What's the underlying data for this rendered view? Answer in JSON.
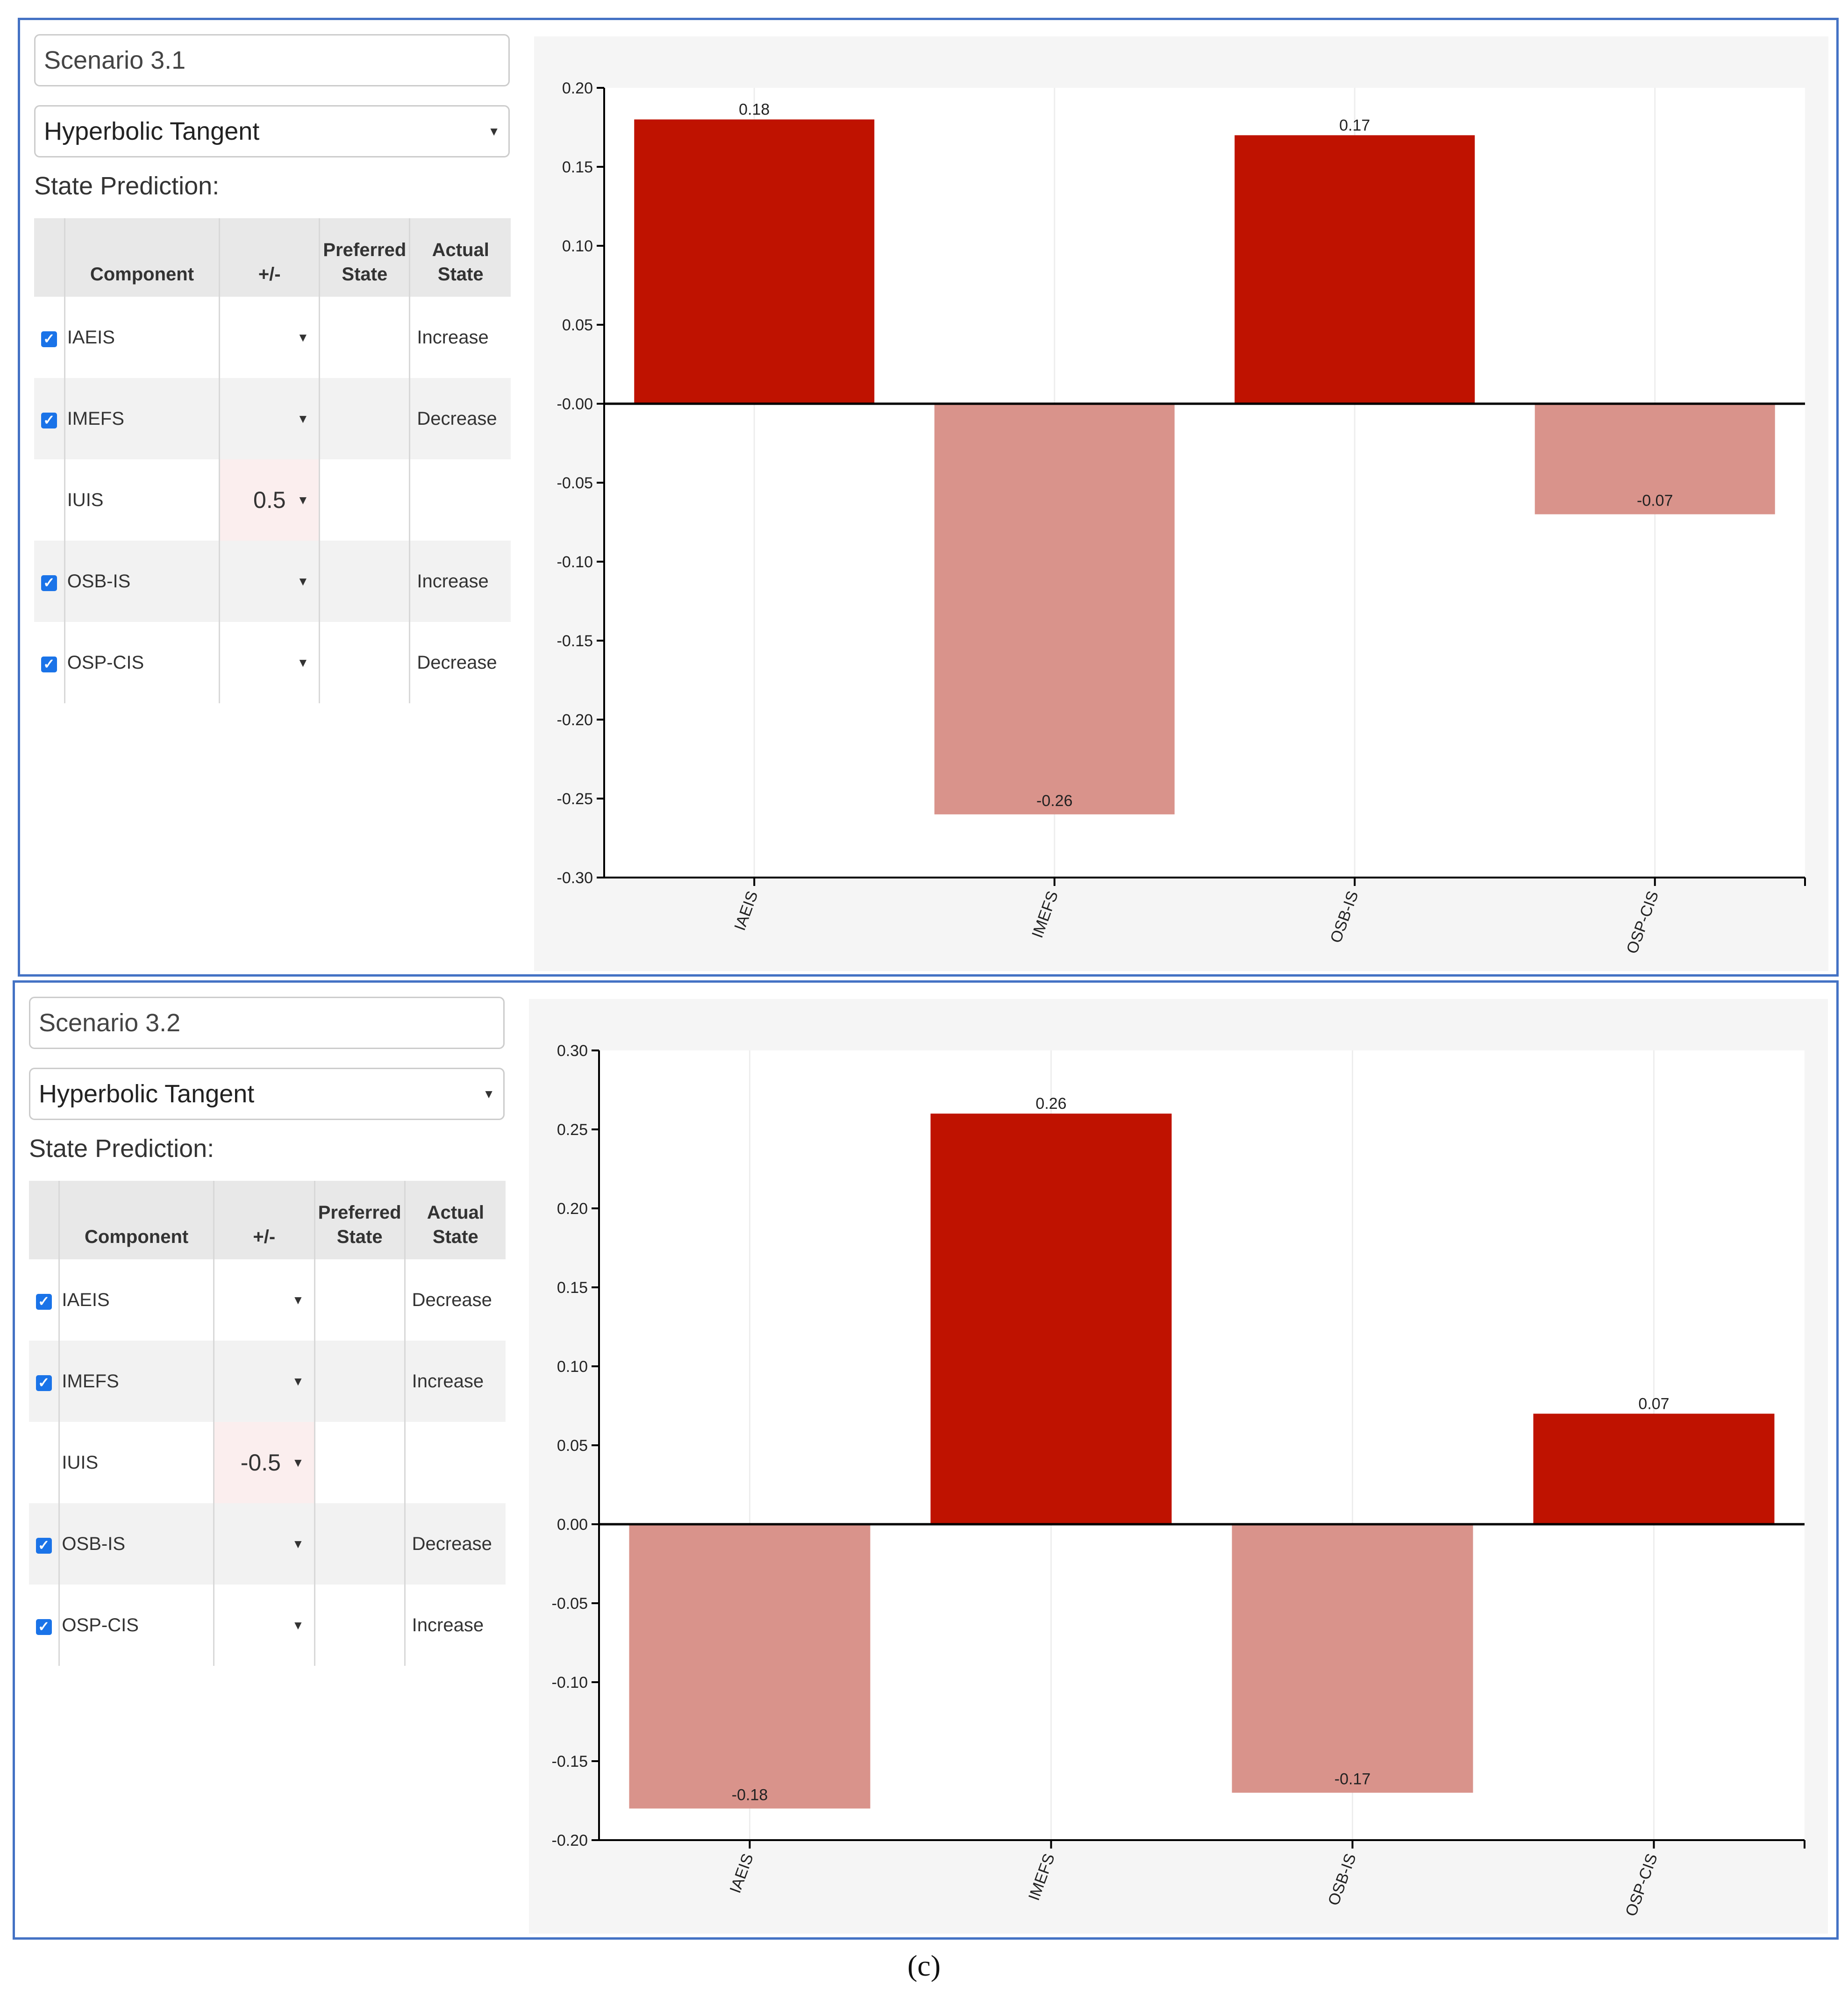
{
  "scenarios": [
    {
      "name": "Scenario 3.1",
      "function": "Hyperbolic Tangent",
      "state_label": "State Prediction:",
      "table": {
        "headers": {
          "component": "Component",
          "plusminus": "+/-",
          "preferred": "Preferred\nState",
          "actual": "Actual\nState"
        },
        "rows": [
          {
            "checked": true,
            "component": "IAEIS",
            "value": "",
            "actual": "Increase"
          },
          {
            "checked": true,
            "component": "IMEFS",
            "value": "",
            "actual": "Decrease"
          },
          {
            "checked": false,
            "component": "IUIS",
            "value": "0.5",
            "actual": ""
          },
          {
            "checked": true,
            "component": "OSB-IS",
            "value": "",
            "actual": "Increase"
          },
          {
            "checked": true,
            "component": "OSP-CIS",
            "value": "",
            "actual": "Decrease"
          }
        ]
      }
    },
    {
      "name": "Scenario 3.2",
      "function": "Hyperbolic Tangent",
      "state_label": "State Prediction:",
      "table": {
        "headers": {
          "component": "Component",
          "plusminus": "+/-",
          "preferred": "Preferred\nState",
          "actual": "Actual\nState"
        },
        "rows": [
          {
            "checked": true,
            "component": "IAEIS",
            "value": "",
            "actual": "Decrease"
          },
          {
            "checked": true,
            "component": "IMEFS",
            "value": "",
            "actual": "Increase"
          },
          {
            "checked": false,
            "component": "IUIS",
            "value": "-0.5",
            "actual": ""
          },
          {
            "checked": true,
            "component": "OSB-IS",
            "value": "",
            "actual": "Decrease"
          },
          {
            "checked": true,
            "component": "OSP-CIS",
            "value": "",
            "actual": "Increase"
          }
        ]
      }
    }
  ],
  "chart_data": [
    {
      "type": "bar",
      "categories": [
        "IAEIS",
        "IMEFS",
        "OSB-IS",
        "OSP-CIS"
      ],
      "values": [
        0.18,
        -0.26,
        0.17,
        -0.07
      ],
      "value_labels": [
        "0.18",
        "-0.26",
        "0.17",
        "-0.07"
      ],
      "ylim": [
        -0.3,
        0.2
      ],
      "yticks": [
        0.2,
        0.15,
        0.1,
        0.05,
        0.0,
        -0.05,
        -0.1,
        -0.15,
        -0.2,
        -0.25,
        -0.3
      ],
      "ytick_labels": [
        "0.20",
        "0.15",
        "0.10",
        "0.05",
        "-0.00",
        "-0.05",
        "-0.10",
        "-0.15",
        "-0.20",
        "-0.25",
        "-0.30"
      ],
      "title": "",
      "xlabel": "",
      "ylabel": ""
    },
    {
      "type": "bar",
      "categories": [
        "IAEIS",
        "IMEFS",
        "OSB-IS",
        "OSP-CIS"
      ],
      "values": [
        -0.18,
        0.26,
        -0.17,
        0.07
      ],
      "value_labels": [
        "-0.18",
        "0.26",
        "-0.17",
        "0.07"
      ],
      "ylim": [
        -0.2,
        0.3
      ],
      "yticks": [
        0.3,
        0.25,
        0.2,
        0.15,
        0.1,
        0.05,
        0.0,
        -0.05,
        -0.1,
        -0.15,
        -0.2
      ],
      "ytick_labels": [
        "0.30",
        "0.25",
        "0.20",
        "0.15",
        "0.10",
        "0.05",
        "0.00",
        "-0.05",
        "-0.10",
        "-0.15",
        "-0.20"
      ],
      "title": "",
      "xlabel": "",
      "ylabel": ""
    }
  ],
  "colors": {
    "positive": "#bf1200",
    "negative": "#d9938b",
    "panel_border": "#4472c4",
    "checkbox": "#1a73e8"
  },
  "caption": "(c)"
}
